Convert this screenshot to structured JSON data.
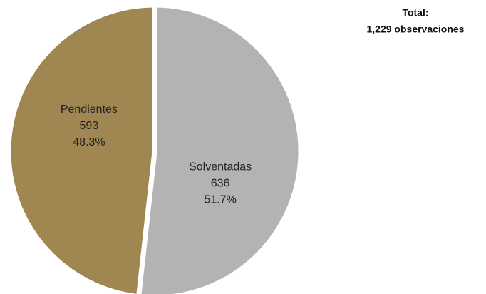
{
  "chart_data": {
    "type": "pie",
    "title": "Total:",
    "subtitle": "1,229 observaciones",
    "categories": [
      "Solventadas",
      "Pendientes"
    ],
    "values": [
      636,
      593
    ],
    "percent_labels": [
      "51.7%",
      "48.3%"
    ],
    "colors": [
      "#b3b3b3",
      "#a08752"
    ]
  }
}
